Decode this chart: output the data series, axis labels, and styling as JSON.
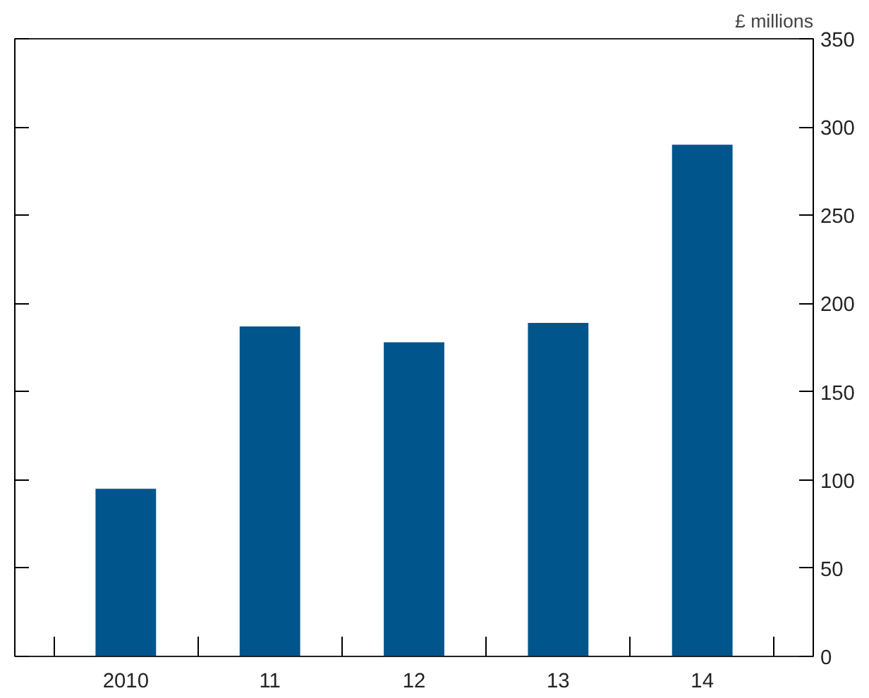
{
  "chart_data": {
    "type": "bar",
    "ylabel": "£ millions",
    "categories": [
      "2010",
      "11",
      "12",
      "13",
      "14"
    ],
    "values": [
      95,
      187,
      178,
      189,
      290
    ],
    "color": "#00558c",
    "ylim": [
      0,
      350
    ],
    "yticks": [
      0,
      50,
      100,
      150,
      200,
      250,
      300,
      350
    ],
    "grid": false
  }
}
